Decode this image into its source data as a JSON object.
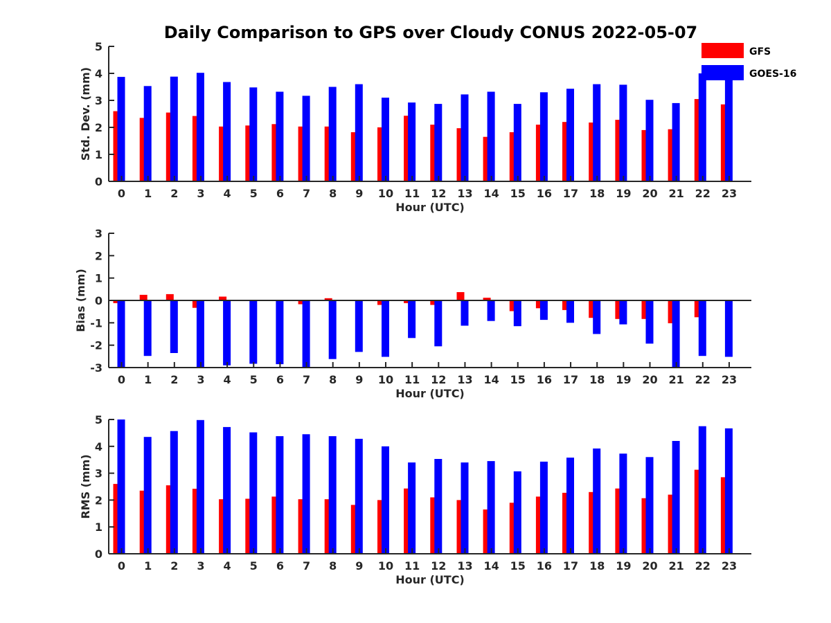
{
  "chart_data": {
    "type": "bar",
    "title": "Daily Comparison to GPS over Cloudy CONUS 2022-05-07",
    "categories": [
      "0",
      "1",
      "2",
      "3",
      "4",
      "5",
      "6",
      "7",
      "8",
      "9",
      "10",
      "11",
      "12",
      "13",
      "14",
      "15",
      "16",
      "17",
      "18",
      "19",
      "20",
      "21",
      "22",
      "23"
    ],
    "legend": {
      "placement": "top-right",
      "entries": [
        {
          "name": "GFS",
          "color": "#ff0000"
        },
        {
          "name": "GOES-16",
          "color": "#0000ff"
        }
      ]
    },
    "panels": [
      {
        "ylabel": "Std. Dev. (mm)",
        "xlabel": "Hour (UTC)",
        "ylim": [
          0,
          5
        ],
        "yticks": [
          "0",
          "1",
          "2",
          "3",
          "4",
          "5"
        ],
        "series": [
          {
            "name": "GFS",
            "color": "#ff0000",
            "values": [
              2.6,
              2.35,
              2.55,
              2.42,
              2.03,
              2.07,
              2.12,
              2.03,
              2.03,
              1.82,
              2.0,
              2.43,
              2.1,
              1.97,
              1.65,
              1.82,
              2.1,
              2.2,
              2.18,
              2.28,
              1.9,
              1.93,
              3.05,
              2.85
            ]
          },
          {
            "name": "GOES-16",
            "color": "#0000ff",
            "values": [
              3.87,
              3.53,
              3.88,
              4.02,
              3.68,
              3.48,
              3.32,
              3.17,
              3.5,
              3.6,
              3.1,
              2.92,
              2.87,
              3.22,
              3.32,
              2.87,
              3.3,
              3.43,
              3.6,
              3.58,
              3.02,
              2.9,
              4.0,
              3.95
            ]
          }
        ]
      },
      {
        "ylabel": "Bias (mm)",
        "xlabel": "Hour (UTC)",
        "ylim": [
          -3,
          3
        ],
        "yticks": [
          "-3",
          "-2",
          "-1",
          "0",
          "1",
          "2",
          "3"
        ],
        "zero_line": true,
        "series": [
          {
            "name": "GFS",
            "color": "#ff0000",
            "values": [
              -0.12,
              0.25,
              0.28,
              -0.33,
              0.17,
              0.03,
              0.0,
              -0.17,
              0.1,
              0.03,
              -0.2,
              -0.12,
              -0.2,
              0.37,
              0.12,
              -0.48,
              -0.35,
              -0.43,
              -0.78,
              -0.83,
              -0.83,
              -1.02,
              -0.75,
              0.0
            ]
          },
          {
            "name": "GOES-16",
            "color": "#0000ff",
            "values": [
              -3.0,
              -2.48,
              -2.35,
              -2.97,
              -2.9,
              -2.83,
              -2.85,
              -3.0,
              -2.62,
              -2.3,
              -2.52,
              -1.68,
              -2.05,
              -1.13,
              -0.92,
              -1.15,
              -0.87,
              -1.0,
              -1.5,
              -1.07,
              -1.93,
              -3.0,
              -2.48,
              -2.52
            ]
          }
        ]
      },
      {
        "ylabel": "RMS (mm)",
        "xlabel": "Hour (UTC)",
        "ylim": [
          0,
          5
        ],
        "yticks": [
          "0",
          "1",
          "2",
          "3",
          "4",
          "5"
        ],
        "series": [
          {
            "name": "GFS",
            "color": "#ff0000",
            "values": [
              2.6,
              2.35,
              2.55,
              2.42,
              2.03,
              2.05,
              2.13,
              2.03,
              2.03,
              1.82,
              2.0,
              2.43,
              2.1,
              2.0,
              1.65,
              1.9,
              2.13,
              2.27,
              2.3,
              2.43,
              2.07,
              2.2,
              3.13,
              2.85
            ]
          },
          {
            "name": "GOES-16",
            "color": "#0000ff",
            "values": [
              5.0,
              4.35,
              4.57,
              4.98,
              4.72,
              4.52,
              4.38,
              4.45,
              4.38,
              4.28,
              4.0,
              3.4,
              3.53,
              3.4,
              3.45,
              3.07,
              3.43,
              3.58,
              3.92,
              3.73,
              3.6,
              4.2,
              4.75,
              4.67
            ]
          }
        ]
      }
    ]
  }
}
